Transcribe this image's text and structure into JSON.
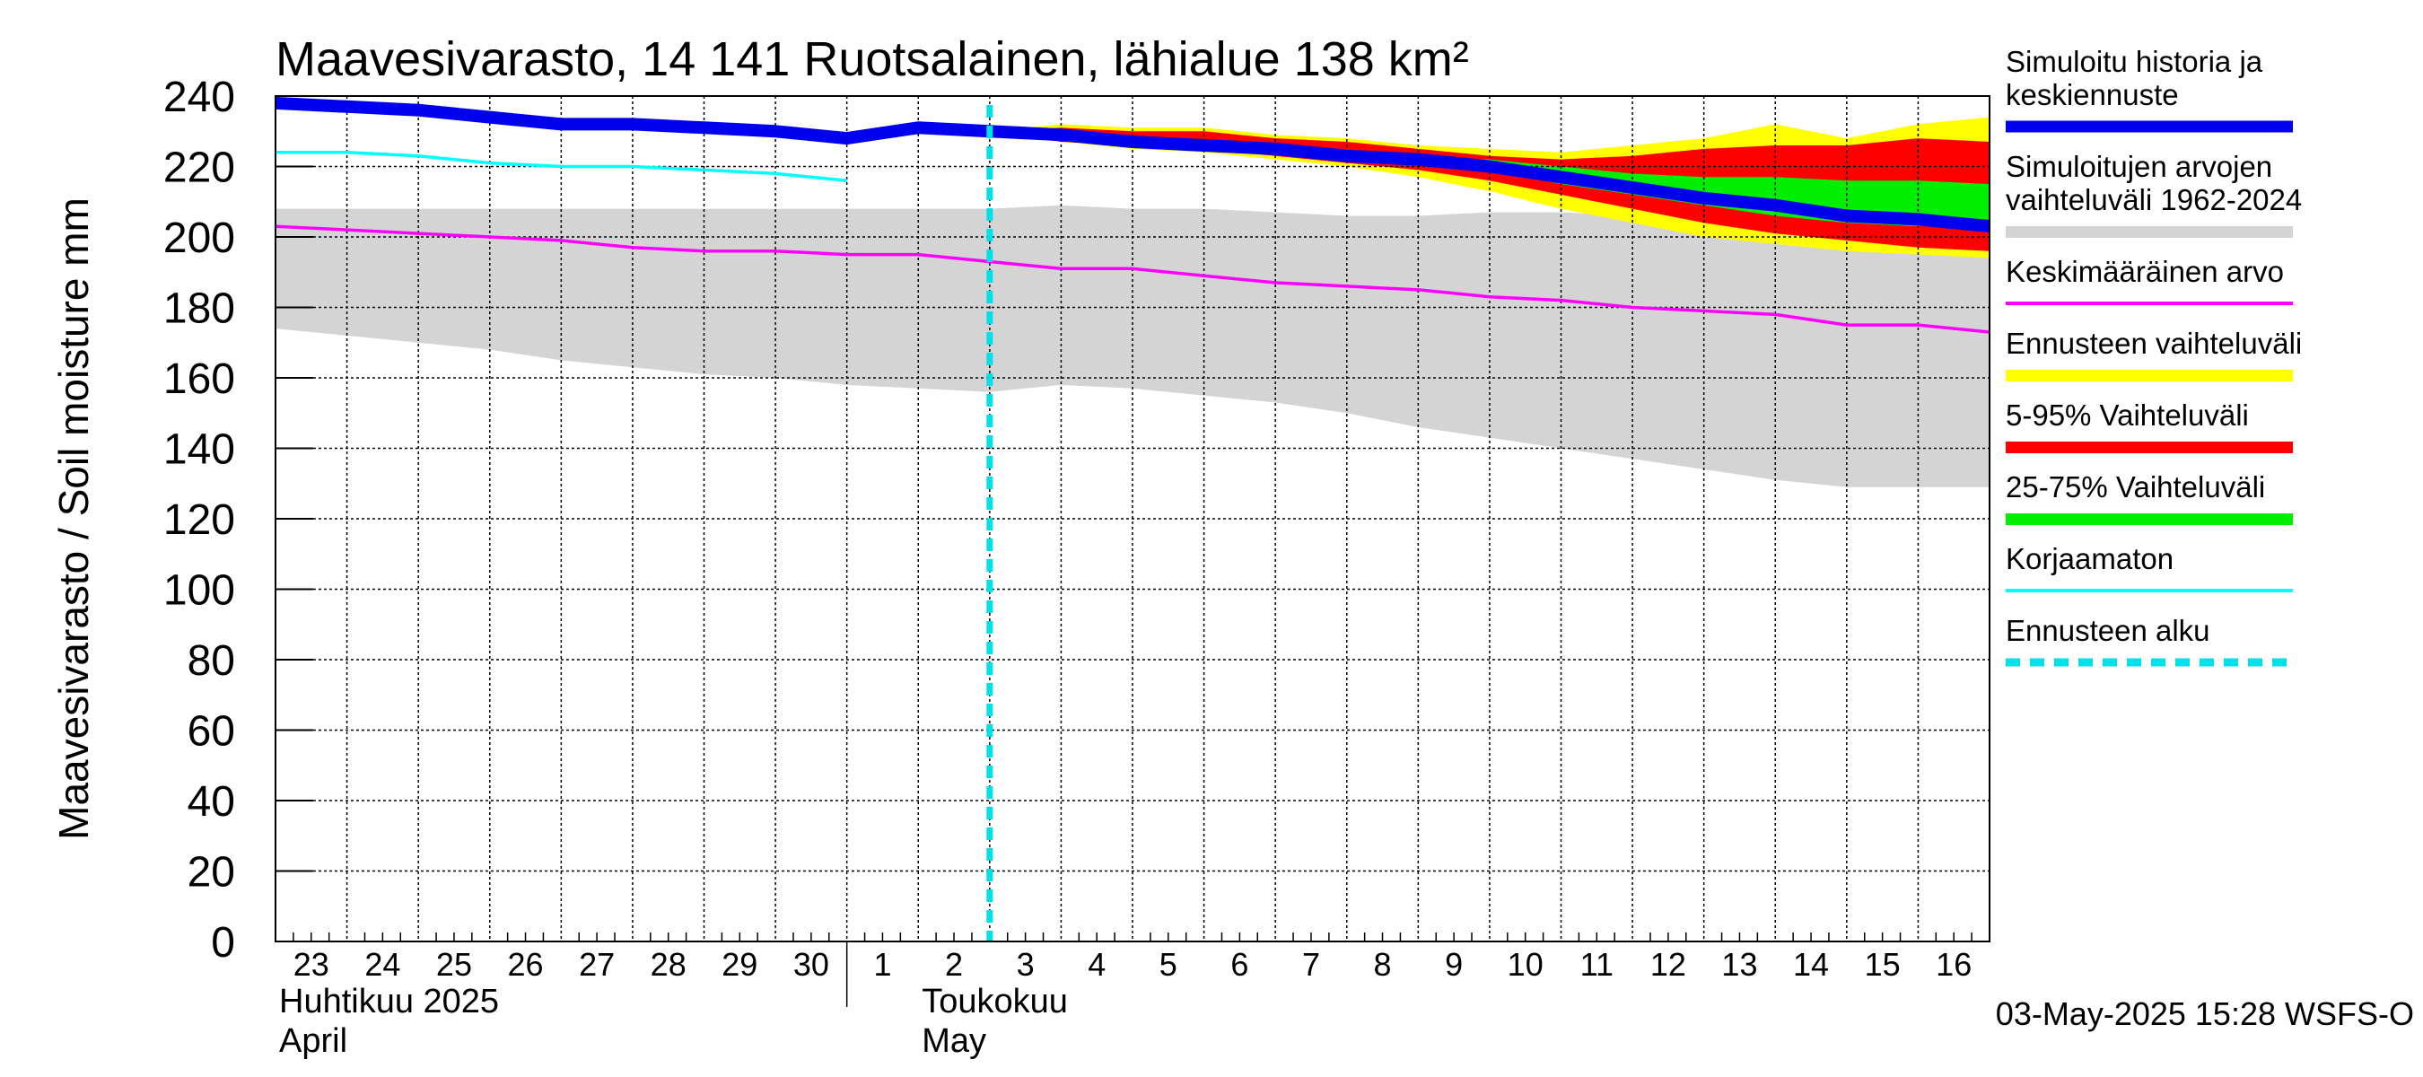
{
  "chart_data": {
    "type": "area",
    "title": "Maavesivarasto, 14 141 Ruotsalainen, lähialue 138 km²",
    "ylabel": "Maavesivarasto / Soil moisture   mm",
    "ylim": [
      0,
      240
    ],
    "yticks": [
      "0",
      "20",
      "40",
      "60",
      "80",
      "100",
      "120",
      "140",
      "160",
      "180",
      "200",
      "220",
      "240"
    ],
    "xlim": [
      0,
      24
    ],
    "grid": true,
    "x_ticks": [
      {
        "x": 0,
        "label": "23"
      },
      {
        "x": 1,
        "label": "24"
      },
      {
        "x": 2,
        "label": "25"
      },
      {
        "x": 3,
        "label": "26"
      },
      {
        "x": 4,
        "label": "27"
      },
      {
        "x": 5,
        "label": "28"
      },
      {
        "x": 6,
        "label": "29"
      },
      {
        "x": 7,
        "label": "30"
      },
      {
        "x": 8,
        "label": "1"
      },
      {
        "x": 9,
        "label": "2"
      },
      {
        "x": 10,
        "label": "3"
      },
      {
        "x": 11,
        "label": "4"
      },
      {
        "x": 12,
        "label": "5"
      },
      {
        "x": 13,
        "label": "6"
      },
      {
        "x": 14,
        "label": "7"
      },
      {
        "x": 15,
        "label": "8"
      },
      {
        "x": 16,
        "label": "9"
      },
      {
        "x": 17,
        "label": "10"
      },
      {
        "x": 18,
        "label": "11"
      },
      {
        "x": 19,
        "label": "12"
      },
      {
        "x": 20,
        "label": "13"
      },
      {
        "x": 21,
        "label": "14"
      },
      {
        "x": 22,
        "label": "15"
      },
      {
        "x": 23,
        "label": "16"
      }
    ],
    "month_labels": [
      {
        "x": 0,
        "line1": "Huhtikuu  2025",
        "line2": "April"
      },
      {
        "x": 9,
        "line1": "Toukokuu",
        "line2": "May"
      }
    ],
    "month_divider_x": 8,
    "forecast_start_x": 10,
    "x": [
      0,
      1,
      2,
      3,
      4,
      5,
      6,
      7,
      8,
      9,
      10,
      11,
      12,
      13,
      14,
      15,
      16,
      17,
      18,
      19,
      20,
      21,
      22,
      23,
      24
    ],
    "sim_range": {
      "upper": [
        208,
        208,
        208,
        208,
        208,
        208,
        208,
        208,
        208,
        208,
        208,
        209,
        208,
        208,
        207,
        206,
        206,
        207,
        207,
        206,
        205,
        204,
        202,
        201,
        200
      ],
      "lower": [
        174,
        172,
        170,
        168,
        165,
        163,
        161,
        160,
        158,
        157,
        156,
        158,
        157,
        155,
        153,
        150,
        146,
        143,
        140,
        137,
        134,
        131,
        129,
        129,
        129
      ]
    },
    "mean": [
      203,
      202,
      201,
      200,
      199,
      197,
      196,
      196,
      195,
      195,
      193,
      191,
      191,
      189,
      187,
      186,
      185,
      183,
      182,
      180,
      179,
      178,
      175,
      175,
      173
    ],
    "uncorrected": {
      "x": [
        0,
        1,
        2,
        3,
        4,
        5,
        6,
        7,
        8
      ],
      "y": [
        224,
        224,
        223,
        221,
        220,
        220,
        219,
        218,
        216
      ]
    },
    "history": {
      "x": [
        0,
        1,
        2,
        3,
        4,
        5,
        6,
        7,
        8,
        9,
        10
      ],
      "y": [
        238,
        237,
        236,
        234,
        232,
        232,
        231,
        230,
        228,
        231,
        230
      ]
    },
    "forecast": {
      "x": [
        10,
        11,
        12,
        13,
        14,
        15,
        16,
        17,
        18,
        19,
        20,
        21,
        22,
        23,
        24
      ],
      "median": [
        230,
        229,
        227,
        226,
        225,
        223,
        222,
        220,
        217,
        214,
        211,
        209,
        206,
        205,
        203
      ],
      "range_max": [
        230,
        232,
        231,
        231,
        229,
        228,
        226,
        225,
        224,
        226,
        228,
        232,
        228,
        232,
        234
      ],
      "range_min": [
        230,
        227,
        225,
        224,
        222,
        220,
        217,
        213,
        208,
        204,
        200,
        198,
        196,
        195,
        194
      ],
      "p95": [
        230,
        231,
        230,
        230,
        228,
        227,
        225,
        223,
        222,
        223,
        225,
        226,
        226,
        228,
        227
      ],
      "p5": [
        230,
        227,
        226,
        225,
        223,
        221,
        219,
        216,
        212,
        208,
        204,
        201,
        199,
        197,
        196
      ],
      "p75": [
        230,
        230,
        228,
        227,
        226,
        224,
        223,
        222,
        220,
        218,
        217,
        217,
        216,
        216,
        215
      ],
      "p25": [
        230,
        229,
        227,
        226,
        225,
        223,
        221,
        219,
        215,
        212,
        209,
        206,
        204,
        203,
        205
      ]
    },
    "colors": {
      "history": "#0000ee",
      "sim_range": "#d4d4d4",
      "mean": "#ff00ff",
      "forecast_range": "#ffff00",
      "p5_95": "#ff0000",
      "p25_75": "#00ee00",
      "uncorrected": "#00ffff",
      "forecast_start": "#00e0e8"
    },
    "legend": [
      {
        "label": "Simuloitu historia ja keskiennuste",
        "lines": [
          "Simuloitu historia ja",
          "keskiennuste"
        ],
        "color": "#0000ee",
        "style": "thick"
      },
      {
        "label": "Simuloitujen arvojen vaihteluväli 1962-2024",
        "lines": [
          "Simuloitujen arvojen",
          "vaihteluväli 1962-2024"
        ],
        "color": "#d4d4d4",
        "style": "band"
      },
      {
        "label": "Keskimääräinen arvo",
        "lines": [
          "Keskimääräinen arvo"
        ],
        "color": "#ff00ff",
        "style": "line"
      },
      {
        "label": "Ennusteen vaihteluväli",
        "lines": [
          "Ennusteen vaihteluväli"
        ],
        "color": "#ffff00",
        "style": "band"
      },
      {
        "label": "5-95% Vaihteluväli",
        "lines": [
          "5-95% Vaihteluväli"
        ],
        "color": "#ff0000",
        "style": "band"
      },
      {
        "label": "25-75% Vaihteluväli",
        "lines": [
          "25-75% Vaihteluväli"
        ],
        "color": "#00ee00",
        "style": "band"
      },
      {
        "label": "Korjaamaton",
        "lines": [
          "Korjaamaton"
        ],
        "color": "#00ffff",
        "style": "line"
      },
      {
        "label": "Ennusteen alku",
        "lines": [
          "Ennusteen alku"
        ],
        "color": "#00e0e8",
        "style": "dashed"
      }
    ],
    "legend_position": "right",
    "footer": "03-May-2025 15:28 WSFS-O"
  }
}
